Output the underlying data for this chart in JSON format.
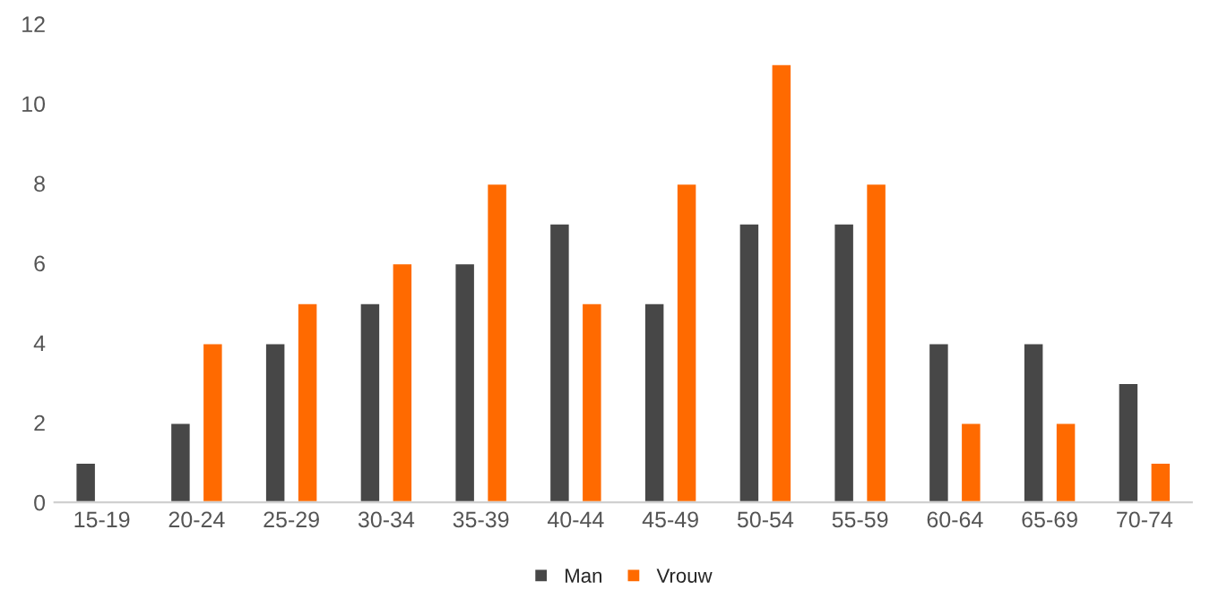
{
  "chart_data": {
    "type": "bar",
    "categories": [
      "15-19",
      "20-24",
      "25-29",
      "30-34",
      "35-39",
      "40-44",
      "45-49",
      "50-54",
      "55-59",
      "60-64",
      "65-69",
      "70-74"
    ],
    "series": [
      {
        "name": "Man",
        "color": "#474747",
        "values": [
          1,
          2,
          4,
          5,
          6,
          7,
          5,
          7,
          7,
          4,
          4,
          3
        ]
      },
      {
        "name": "Vrouw",
        "color": "#ff6a00",
        "values": [
          null,
          4,
          5,
          6,
          8,
          5,
          8,
          11,
          8,
          2,
          2,
          1
        ]
      }
    ],
    "ylim": [
      0,
      12
    ],
    "yticks": [
      0,
      2,
      4,
      6,
      8,
      10,
      12
    ],
    "grid": false,
    "legend": "bottom"
  }
}
